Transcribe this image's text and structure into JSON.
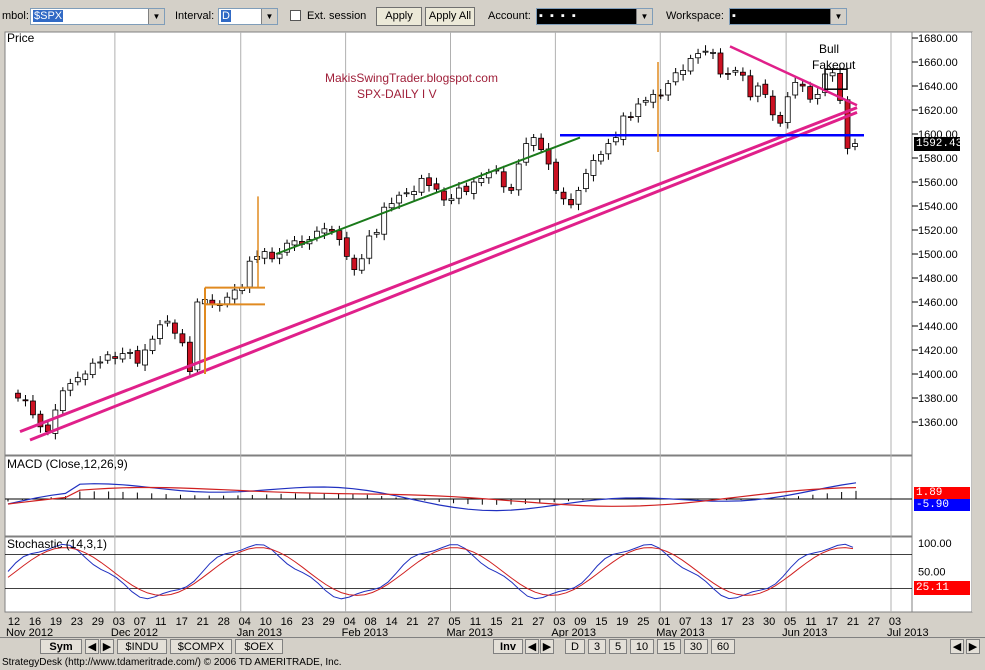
{
  "toolbar": {
    "symbol_label": "mbol:",
    "symbol_value": "$SPX",
    "interval_label": "Interval:",
    "interval_value": "D",
    "ext_session_label": "Ext. session",
    "apply_label": "Apply",
    "apply_all_label": "Apply All",
    "account_label": "Account:",
    "account_value": "▪  ▪  ▪  ▪",
    "workspace_label": "Workspace:",
    "workspace_value": "▪"
  },
  "colors": {
    "bull": "#ffffff",
    "bear": "#cc1122",
    "support": "#e0208a",
    "resistance": "#0000ff",
    "trend": "#1a7a1a",
    "flag": "#e08a20",
    "macd": "#2030c0",
    "signal": "#d02020"
  },
  "chart_data": [
    {
      "type": "candlestick",
      "title": "Price",
      "annotations": [
        "MakisSwingTrader.blogspot.com",
        "SPX-DAILY  I V",
        "Bull",
        "Fakeout"
      ],
      "ylim": [
        1340,
        1690
      ],
      "yticks": [
        1360,
        1380,
        1400,
        1420,
        1440,
        1460,
        1480,
        1500,
        1520,
        1540,
        1560,
        1580,
        1600,
        1620,
        1640,
        1660,
        1680
      ],
      "last_price": "1592.43",
      "closes": [
        1380,
        1378,
        1366,
        1356,
        1352,
        1370,
        1386,
        1392,
        1397,
        1400,
        1409,
        1410,
        1416,
        1413,
        1417,
        1418,
        1409,
        1420,
        1429,
        1441,
        1444,
        1434,
        1426,
        1402,
        1460,
        1462,
        1458,
        1457,
        1464,
        1470,
        1472,
        1494,
        1498,
        1502,
        1496,
        1500,
        1509,
        1511,
        1508,
        1512,
        1519,
        1521,
        1519,
        1512,
        1498,
        1487,
        1496,
        1515,
        1518,
        1539,
        1542,
        1549,
        1551,
        1552,
        1563,
        1557,
        1554,
        1545,
        1546,
        1555,
        1552,
        1560,
        1563,
        1568,
        1570,
        1556,
        1553,
        1575,
        1592,
        1597,
        1587,
        1575,
        1553,
        1546,
        1541,
        1553,
        1567,
        1578,
        1583,
        1592,
        1597,
        1615,
        1614,
        1625,
        1628,
        1633,
        1632,
        1642,
        1651,
        1653,
        1663,
        1667,
        1669,
        1668,
        1650,
        1650,
        1653,
        1649,
        1631,
        1640,
        1633,
        1616,
        1609,
        1631,
        1643,
        1640,
        1629,
        1633,
        1650,
        1651,
        1628,
        1588,
        1592
      ]
    },
    {
      "type": "line",
      "title": "MACD (Close,12,26,9)",
      "macd_value": "1.89",
      "signal_value": "-5.90"
    },
    {
      "type": "line",
      "title": "Stochastic (14,3,1)",
      "yticks": [
        50,
        100
      ],
      "k_value": "25.11"
    }
  ],
  "axis": {
    "dates": [
      "12",
      "16",
      "19",
      "23",
      "29",
      "03",
      "07",
      "11",
      "17",
      "21",
      "28",
      "04",
      "10",
      "16",
      "23",
      "29",
      "04",
      "08",
      "14",
      "21",
      "27",
      "05",
      "11",
      "15",
      "21",
      "27",
      "03",
      "09",
      "15",
      "19",
      "25",
      "01",
      "07",
      "13",
      "17",
      "23",
      "30",
      "05",
      "11",
      "17",
      "21",
      "27",
      "03"
    ],
    "months": [
      "Nov 2012",
      "Dec 2012",
      "Jan 2013",
      "Feb 2013",
      "Mar 2013",
      "Apr 2013",
      "May 2013",
      "Jun 2013",
      "Jul 2013"
    ]
  },
  "tabs": {
    "sym": "Sym",
    "symbols": [
      "$INDU",
      "$COMPX",
      "$OEX"
    ],
    "inv": "Inv",
    "intervals": [
      "D",
      "3",
      "5",
      "10",
      "15",
      "30",
      "60"
    ]
  },
  "status": "StrategyDesk (http://www.tdameritrade.com/) © 2006 TD AMERITRADE, Inc."
}
